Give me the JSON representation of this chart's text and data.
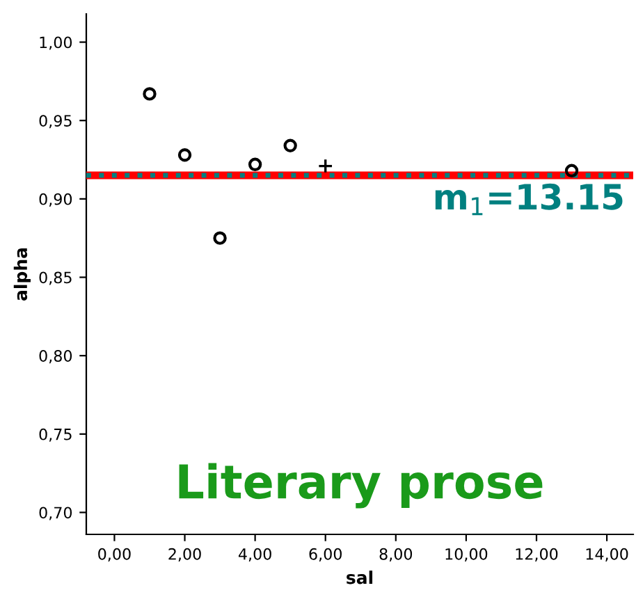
{
  "chart_data": {
    "type": "scatter",
    "xlabel": "sal",
    "ylabel": "alpha",
    "xlim": [
      -0.8,
      14.75
    ],
    "ylim": [
      0.686,
      1.018
    ],
    "xticks": [
      {
        "value": 0,
        "label": "0,00"
      },
      {
        "value": 2,
        "label": "2,00"
      },
      {
        "value": 4,
        "label": "4,00"
      },
      {
        "value": 6,
        "label": "6,00"
      },
      {
        "value": 8,
        "label": "8,00"
      },
      {
        "value": 10,
        "label": "10,00"
      },
      {
        "value": 12,
        "label": "12,00"
      },
      {
        "value": 14,
        "label": "14,00"
      }
    ],
    "yticks": [
      {
        "value": 0.7,
        "label": "0,70"
      },
      {
        "value": 0.75,
        "label": "0,75"
      },
      {
        "value": 0.8,
        "label": "0,80"
      },
      {
        "value": 0.85,
        "label": "0,85"
      },
      {
        "value": 0.9,
        "label": "0,90"
      },
      {
        "value": 0.95,
        "label": "0,95"
      },
      {
        "value": 1.0,
        "label": "1,00"
      }
    ],
    "series": [
      {
        "x": [
          1,
          2,
          3,
          4,
          5,
          13
        ],
        "values": [
          0.967,
          0.928,
          0.875,
          0.922,
          0.934,
          0.918
        ],
        "color": "#000000",
        "marker": "circle"
      },
      {
        "x": [
          6
        ],
        "values": [
          0.921
        ],
        "color": "#000000",
        "marker": "cross"
      }
    ],
    "ref_lines": [
      {
        "axis": "y",
        "value": 0.915,
        "color": "#ff0000",
        "line_style": "solid"
      },
      {
        "axis": "y",
        "value": 0.915,
        "color": "#008080",
        "line_style": "dotted"
      }
    ],
    "annotations": [
      "m$_{1}$=13.15",
      "Literary prose"
    ],
    "grid": false
  }
}
